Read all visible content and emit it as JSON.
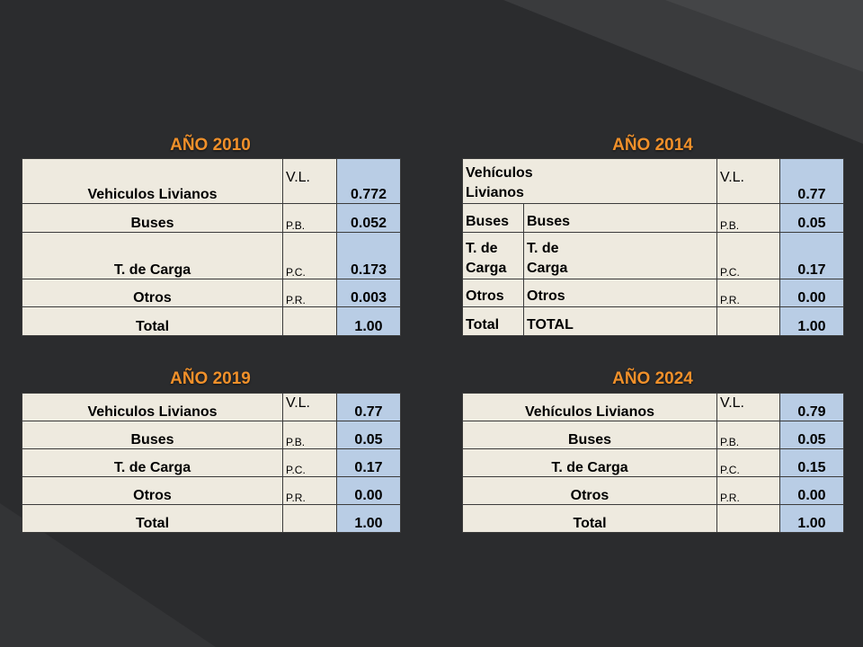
{
  "tables": {
    "y2010": {
      "title": "AÑO 2010",
      "rows": [
        {
          "label": "Vehiculos Livianos",
          "abbr": "V.L.",
          "value": "0.772"
        },
        {
          "label": "Buses",
          "abbr": "P.B.",
          "value": "0.052"
        },
        {
          "label": "T. de Carga",
          "abbr": "P.C.",
          "value": "0.173"
        },
        {
          "label": "Otros",
          "abbr": "P.R.",
          "value": "0.003"
        },
        {
          "label": "Total",
          "abbr": "",
          "value": "1.00"
        }
      ]
    },
    "y2014": {
      "title": "AÑO 2014",
      "rows": [
        {
          "label_a": "",
          "label": "Vehículos Livianos",
          "abbr": "V.L.",
          "value": "0.77"
        },
        {
          "label_a": "Buses",
          "label": "Buses",
          "abbr": "P.B.",
          "value": "0.05"
        },
        {
          "label_a": "T. de Carga",
          "label": "T. de Carga",
          "abbr": "P.C.",
          "value": "0.17"
        },
        {
          "label_a": "Otros",
          "label": "Otros",
          "abbr": "P.R.",
          "value": "0.00"
        },
        {
          "label_a": "Total",
          "label": "TOTAL",
          "abbr": "",
          "value": "1.00"
        }
      ]
    },
    "y2019": {
      "title": "AÑO 2019",
      "rows": [
        {
          "label": "Vehiculos Livianos",
          "abbr": "V.L.",
          "value": "0.77"
        },
        {
          "label": "Buses",
          "abbr": "P.B.",
          "value": "0.05"
        },
        {
          "label": "T. de Carga",
          "abbr": "P.C.",
          "value": "0.17"
        },
        {
          "label": "Otros",
          "abbr": "P.R.",
          "value": "0.00"
        },
        {
          "label": "Total",
          "abbr": "",
          "value": "1.00"
        }
      ]
    },
    "y2024": {
      "title": "AÑO 2024",
      "rows": [
        {
          "label": "Vehículos Livianos",
          "abbr": "V.L.",
          "value": "0.79"
        },
        {
          "label": "Buses",
          "abbr": "P.B.",
          "value": "0.05"
        },
        {
          "label": "T. de Carga",
          "abbr": "P.C.",
          "value": "0.15"
        },
        {
          "label": "Otros",
          "abbr": "P.R.",
          "value": "0.00"
        },
        {
          "label": "Total",
          "abbr": "",
          "value": "1.00"
        }
      ]
    }
  },
  "colors": {
    "background": "#2b2c2e",
    "title": "#f0902a",
    "cell": "#eeeadf",
    "value_cell": "#b9cde5"
  }
}
